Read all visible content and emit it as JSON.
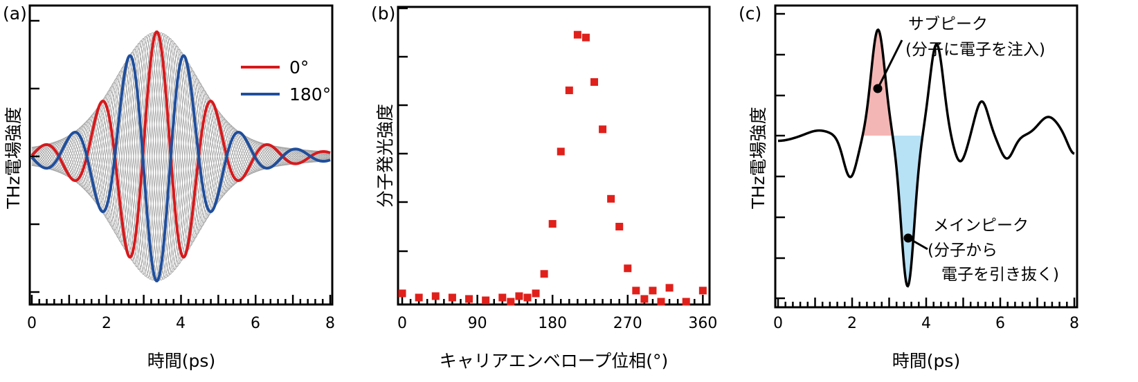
{
  "chart_data": [
    {
      "id": "a",
      "type": "line",
      "panel_label": "(a)",
      "xlabel": "時間(ps)",
      "ylabel": "THz電場強度",
      "xlim": [
        0,
        8
      ],
      "ylim": [
        -1.1,
        1.1
      ],
      "x_ticks": [
        "0",
        "2",
        "4",
        "6",
        "8"
      ],
      "legend_position": "top-right",
      "colors": {
        "phase0": "#d7191c",
        "phase180": "#1f4e9c",
        "envelope": "#a6a6a6"
      },
      "series": [
        {
          "name": "0°",
          "carrier_phase_deg": 0
        },
        {
          "name": "180°",
          "carrier_phase_deg": 180
        }
      ],
      "waveform": {
        "peak_time_ps": 3.35,
        "period_ps": 1.5,
        "peak_amplitude": 1.0,
        "envelope": "gray family of intermediate phases"
      }
    },
    {
      "id": "b",
      "type": "scatter",
      "panel_label": "(b)",
      "xlabel": "キャリアエンベロープ位相(°)",
      "ylabel": "分子発光強度",
      "xlim": [
        -5,
        368
      ],
      "ylim": [
        -0.02,
        1.05
      ],
      "x_ticks": [
        "0",
        "90",
        "180",
        "270",
        "360"
      ],
      "x_tick_values": [
        0,
        90,
        180,
        270,
        360
      ],
      "color": "#e0201b",
      "points": {
        "x": [
          0,
          20,
          40,
          60,
          80,
          100,
          120,
          130,
          140,
          150,
          160,
          170,
          180,
          190,
          200,
          210,
          220,
          230,
          240,
          250,
          260,
          270,
          280,
          290,
          300,
          310,
          320,
          340,
          360
        ],
        "y": [
          0.02,
          0.005,
          0.01,
          0.005,
          0.0,
          -0.005,
          0.005,
          -0.01,
          0.01,
          0.005,
          0.02,
          0.09,
          0.27,
          0.53,
          0.75,
          0.95,
          0.94,
          0.78,
          0.61,
          0.36,
          0.26,
          0.11,
          0.03,
          0.0,
          0.03,
          -0.01,
          0.04,
          -0.01,
          0.03
        ]
      }
    },
    {
      "id": "c",
      "type": "line",
      "panel_label": "(c)",
      "xlabel": "時間(ps)",
      "ylabel": "THz電場強度",
      "xlim": [
        0,
        8
      ],
      "x_ticks": [
        "0",
        "2",
        "4",
        "6",
        "8"
      ],
      "colors": {
        "line": "#000000",
        "sub_peak_fill": "#f4b6b4",
        "main_peak_fill": "#b7e1f5"
      },
      "annotations": [
        {
          "name": "sub-peak",
          "line1": "サブピーク",
          "line2": "(分子に電子を注入)"
        },
        {
          "name": "main-peak",
          "line1": "メインピーク",
          "line2": "(分子から",
          "line3": "電子を引き抜く)"
        }
      ],
      "waveform": {
        "sub_peak": {
          "t": 2.7,
          "value": 1.0
        },
        "main_peak": {
          "t": 3.5,
          "value": -1.45
        },
        "baseline": 0.0
      }
    }
  ]
}
